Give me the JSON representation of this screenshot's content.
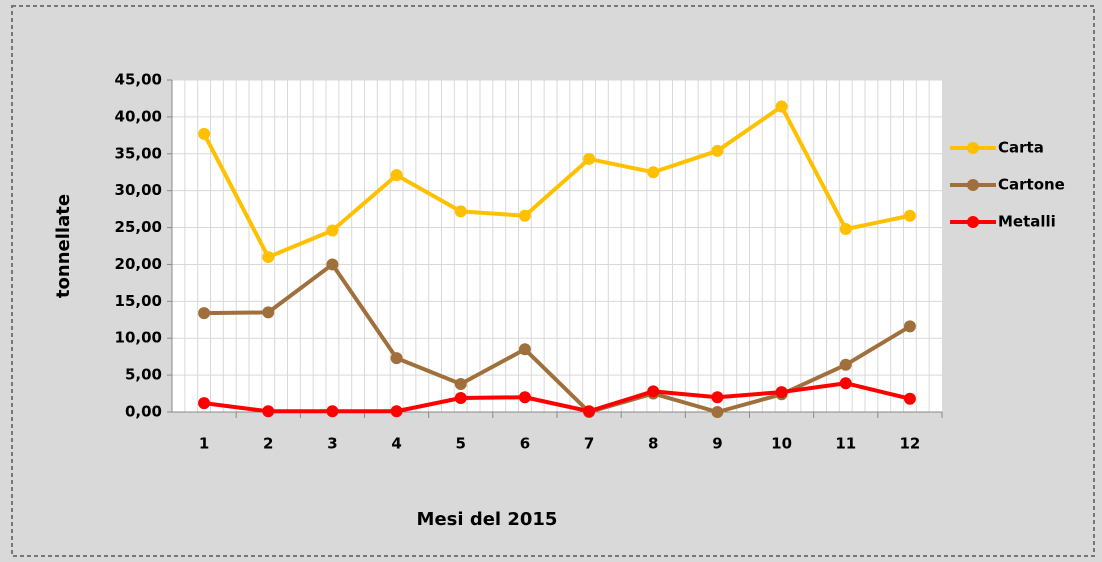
{
  "chart_data": {
    "type": "line",
    "x_label": "Mesi del 2015",
    "y_label": "tonnellate",
    "categories": [
      "1",
      "2",
      "3",
      "4",
      "5",
      "6",
      "7",
      "8",
      "9",
      "10",
      "11",
      "12"
    ],
    "series": [
      {
        "name": "Carta",
        "color": "#ffc000",
        "values": [
          37.7,
          21.0,
          24.6,
          32.1,
          27.2,
          26.6,
          34.3,
          32.5,
          35.4,
          41.4,
          24.8,
          26.6
        ]
      },
      {
        "name": "Cartone",
        "color": "#a0703c",
        "values": [
          13.4,
          13.5,
          20.0,
          7.3,
          3.8,
          8.5,
          0.0,
          2.5,
          0.0,
          2.4,
          6.4,
          11.6
        ]
      },
      {
        "name": "Metalli",
        "color": "#ff0000",
        "values": [
          1.2,
          0.1,
          0.1,
          0.1,
          1.9,
          2.0,
          0.1,
          2.8,
          2.0,
          2.7,
          3.9,
          1.8
        ]
      }
    ],
    "ylim": [
      0,
      45
    ],
    "yticks": [
      {
        "value": 0,
        "label": "0,00"
      },
      {
        "value": 5,
        "label": "5,00"
      },
      {
        "value": 10,
        "label": "10,00"
      },
      {
        "value": 15,
        "label": "15,00"
      },
      {
        "value": 20,
        "label": "20,00"
      },
      {
        "value": 25,
        "label": "25,00"
      },
      {
        "value": 30,
        "label": "30,00"
      },
      {
        "value": 35,
        "label": "35,00"
      },
      {
        "value": 40,
        "label": "40,00"
      },
      {
        "value": 45,
        "label": "45,00"
      }
    ],
    "grid": true,
    "legend": "right"
  }
}
